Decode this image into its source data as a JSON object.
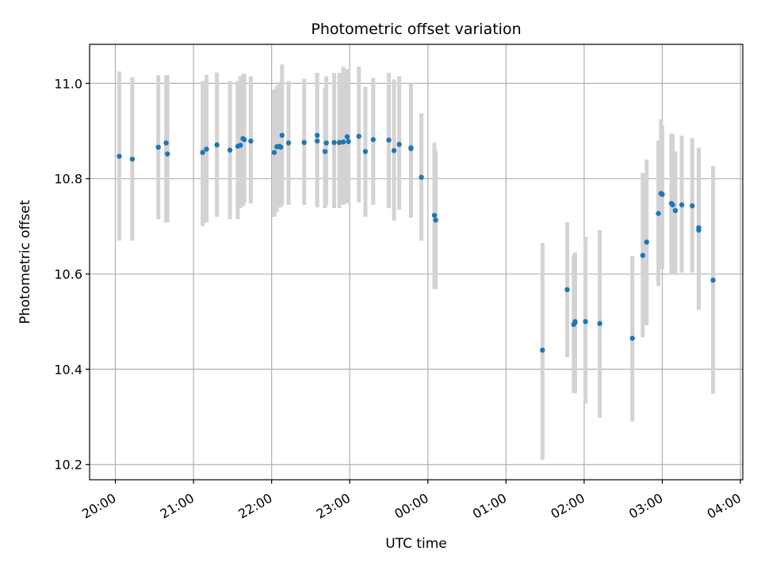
{
  "chart_data": {
    "type": "scatter",
    "title": "Photometric offset variation",
    "xlabel": "UTC time",
    "ylabel": "Photometric offset",
    "x_tick_labels": [
      "20:00",
      "21:00",
      "22:00",
      "23:00",
      "00:00",
      "01:00",
      "02:00",
      "03:00",
      "04:00"
    ],
    "y_ticks": [
      10.2,
      10.4,
      10.6,
      10.8,
      11.0
    ],
    "y_tick_labels": [
      "10.2",
      "10.4",
      "10.6",
      "10.8",
      "11.0"
    ],
    "x_range_hours": [
      19.67,
      28.03
    ],
    "ylim": [
      10.168,
      11.082
    ],
    "grid": true,
    "colors": {
      "point": "#1f77b4",
      "errorbar": "#d3d3d3",
      "grid": "#b0b0b0"
    },
    "series": [
      {
        "x": [
          "20:03",
          "20:13",
          "20:33",
          "20:39",
          "20:40",
          "21:07",
          "21:10",
          "21:18",
          "21:28",
          "21:34",
          "21:36",
          "21:38",
          "21:39",
          "21:44",
          "22:02",
          "22:04",
          "22:06",
          "22:07",
          "22:08",
          "22:13",
          "22:25",
          "22:35",
          "22:35",
          "22:41",
          "22:42",
          "22:48",
          "22:52",
          "22:55",
          "22:58",
          "22:59",
          "23:07",
          "23:12",
          "23:18",
          "23:30",
          "23:34",
          "23:38",
          "23:47",
          "23:47",
          "23:55",
          "00:05",
          "00:06",
          "01:28",
          "01:47",
          "01:52",
          "01:53",
          "01:53",
          "02:01",
          "02:12",
          "02:37",
          "02:45",
          "02:48",
          "02:57",
          "02:59",
          "03:00",
          "03:07",
          "03:08",
          "03:10",
          "03:15",
          "03:23",
          "03:28",
          "03:28",
          "03:39"
        ],
        "y": [
          10.847,
          10.841,
          10.866,
          10.875,
          10.852,
          10.855,
          10.862,
          10.871,
          10.86,
          10.868,
          10.87,
          10.884,
          10.882,
          10.879,
          10.855,
          10.867,
          10.868,
          10.866,
          10.891,
          10.875,
          10.876,
          10.891,
          10.879,
          10.857,
          10.875,
          10.876,
          10.876,
          10.877,
          10.888,
          10.878,
          10.889,
          10.857,
          10.882,
          10.881,
          10.859,
          10.872,
          10.863,
          10.865,
          10.803,
          10.723,
          10.713,
          10.44,
          10.567,
          10.494,
          10.498,
          10.5,
          10.5,
          10.496,
          10.465,
          10.639,
          10.667,
          10.727,
          10.769,
          10.767,
          10.748,
          10.745,
          10.733,
          10.745,
          10.743,
          10.697,
          10.692,
          10.587
        ],
        "err_low": [
          10.67,
          10.67,
          10.715,
          10.708,
          10.708,
          10.7,
          10.708,
          10.72,
          10.715,
          10.715,
          10.738,
          10.742,
          10.748,
          10.748,
          10.72,
          10.73,
          10.74,
          10.74,
          10.745,
          10.745,
          10.745,
          10.74,
          10.74,
          10.738,
          10.745,
          10.738,
          10.738,
          10.745,
          10.748,
          10.748,
          10.75,
          10.72,
          10.745,
          10.738,
          10.712,
          10.735,
          10.718,
          10.718,
          10.67,
          10.568,
          10.568,
          10.21,
          10.425,
          10.35,
          10.35,
          10.355,
          10.328,
          10.298,
          10.29,
          10.467,
          10.492,
          10.575,
          10.61,
          10.61,
          10.6,
          10.6,
          10.598,
          10.603,
          10.603,
          10.525,
          10.525,
          10.348
        ],
        "err_high": [
          11.025,
          11.013,
          11.017,
          11.017,
          11.017,
          11.005,
          11.018,
          11.023,
          11.005,
          11.005,
          11.015,
          11.02,
          11.02,
          11.015,
          10.987,
          10.995,
          11.003,
          11.003,
          11.04,
          11.005,
          11.01,
          11.022,
          11.022,
          10.99,
          11.015,
          11.022,
          11.022,
          11.035,
          11.03,
          11.03,
          11.035,
          10.993,
          11.012,
          11.022,
          11.008,
          11.015,
          11.0,
          11.0,
          10.937,
          10.875,
          10.858,
          10.665,
          10.708,
          10.64,
          10.645,
          10.645,
          10.678,
          10.692,
          10.638,
          10.812,
          10.84,
          10.88,
          10.925,
          10.912,
          10.895,
          10.893,
          10.857,
          10.89,
          10.885,
          10.865,
          10.865,
          10.827
        ]
      }
    ]
  }
}
